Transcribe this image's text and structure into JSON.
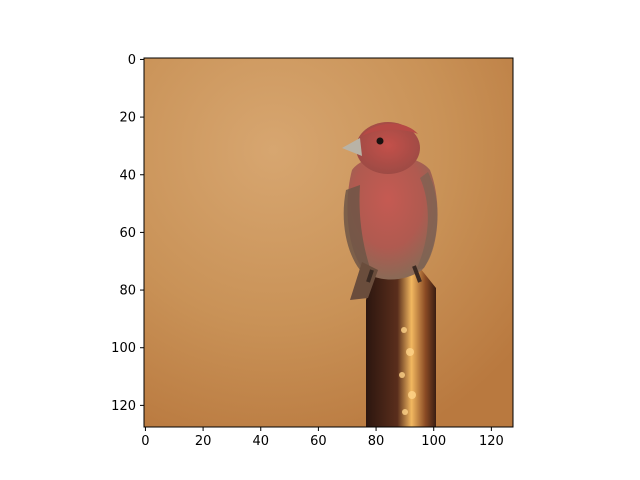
{
  "image": {
    "subject": "house-finch-perched-on-post",
    "x_range": [
      0,
      127
    ],
    "y_range": [
      0,
      127
    ],
    "colors": {
      "background": "#c8955b",
      "background_light": "#d6a56e",
      "bird_red": "#b7534c",
      "bird_brown": "#7a5a44",
      "post_dark": "#3b2016",
      "post_highlight": "#f0b55a"
    }
  },
  "axes": {
    "x_ticks": [
      {
        "value": 0,
        "label": "0"
      },
      {
        "value": 20,
        "label": "20"
      },
      {
        "value": 40,
        "label": "40"
      },
      {
        "value": 60,
        "label": "60"
      },
      {
        "value": 80,
        "label": "80"
      },
      {
        "value": 100,
        "label": "100"
      },
      {
        "value": 120,
        "label": "120"
      }
    ],
    "y_ticks": [
      {
        "value": 0,
        "label": "0"
      },
      {
        "value": 20,
        "label": "20"
      },
      {
        "value": 40,
        "label": "40"
      },
      {
        "value": 60,
        "label": "60"
      },
      {
        "value": 80,
        "label": "80"
      },
      {
        "value": 100,
        "label": "100"
      },
      {
        "value": 120,
        "label": "120"
      }
    ]
  }
}
